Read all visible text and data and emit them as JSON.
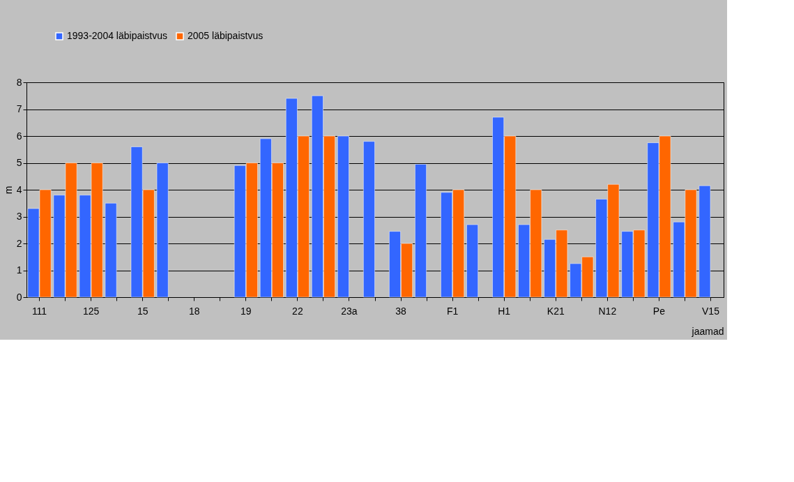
{
  "chart_data": {
    "type": "bar",
    "xlabel": "jaamad",
    "ylabel": "m",
    "categories": [
      "111",
      null,
      "125",
      null,
      "15",
      null,
      "18",
      null,
      "19",
      null,
      "22",
      null,
      "23a",
      null,
      "38",
      null,
      "F1",
      null,
      "H1",
      null,
      "K21",
      null,
      "N12",
      null,
      "Pe",
      null,
      "V15"
    ],
    "series": [
      {
        "name": "1993-2004 läbipaistvus",
        "color": "#3366ff",
        "values": [
          3.3,
          3.8,
          3.8,
          3.5,
          5.6,
          5.0,
          null,
          null,
          4.9,
          5.9,
          7.4,
          7.5,
          6.0,
          5.8,
          2.45,
          4.95,
          3.9,
          2.7,
          6.7,
          2.7,
          2.15,
          1.25,
          3.65,
          2.45,
          5.75,
          2.8,
          4.15
        ]
      },
      {
        "name": "2005 läbipaistvus",
        "color": "#ff6600",
        "values": [
          4.0,
          5.0,
          5.0,
          null,
          4.0,
          null,
          null,
          null,
          5.0,
          5.0,
          6.0,
          6.0,
          null,
          null,
          2.0,
          null,
          4.0,
          null,
          6.0,
          4.0,
          2.5,
          1.5,
          4.2,
          2.5,
          6.0,
          4.0,
          null
        ]
      }
    ],
    "ylim": [
      0,
      8
    ],
    "yticks": [
      0,
      1,
      2,
      3,
      4,
      5,
      6,
      7,
      8
    ],
    "grid": "y",
    "legend": "top"
  }
}
